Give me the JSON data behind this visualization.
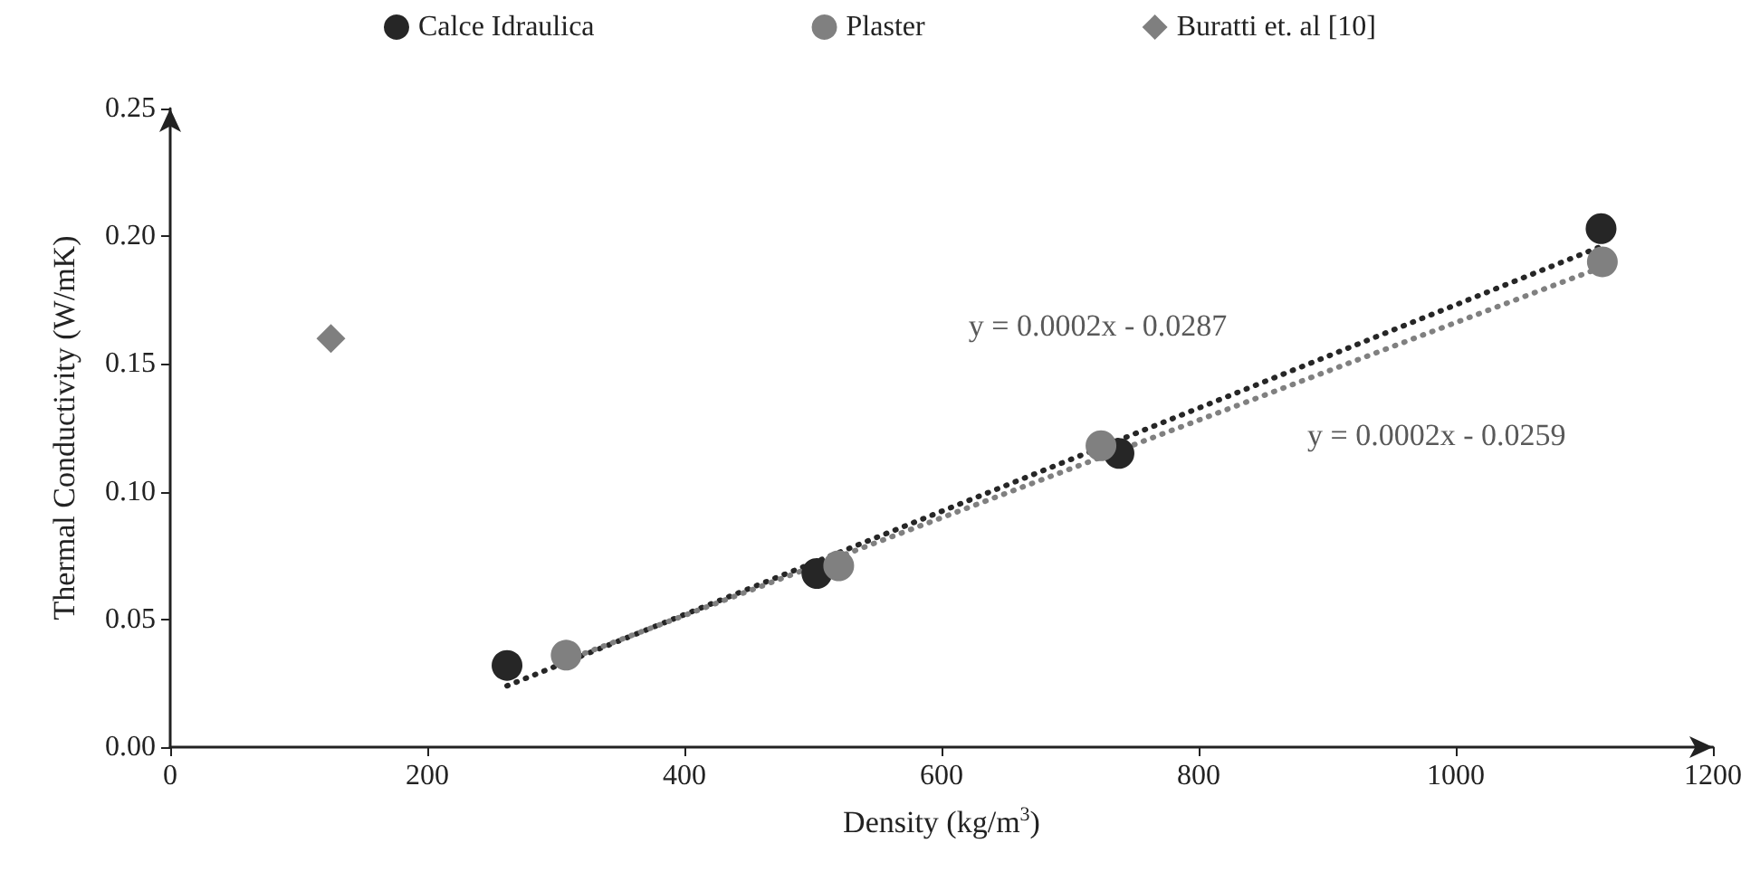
{
  "chart_data": {
    "type": "scatter",
    "xlabel": "Density (kg/m$^{3}$)",
    "ylabel": "Thermal Conductivity (W/mK)",
    "xlim": [
      0,
      1200
    ],
    "xticks": [
      0,
      200,
      400,
      600,
      800,
      1000,
      1200
    ],
    "ylim": [
      0,
      0.25
    ],
    "yticks": [
      {
        "value": 0,
        "label": "0.00"
      },
      {
        "value": 0.05,
        "label": "0.05"
      },
      {
        "value": 0.1,
        "label": "0.10"
      },
      {
        "value": 0.15,
        "label": "0.15"
      },
      {
        "value": 0.2,
        "label": "0.20"
      },
      {
        "value": 0.25,
        "label": "0.25"
      }
    ],
    "grid": false,
    "legend": "top",
    "series": [
      {
        "name": "Calce Idraulica",
        "color": "#262626",
        "marker": "circle",
        "x": [
          262,
          503,
          738,
          1113
        ],
        "values": [
          0.032,
          0.068,
          0.115,
          0.203
        ]
      },
      {
        "name": "Plaster",
        "color": "#808080",
        "marker": "circle",
        "x": [
          308,
          520,
          724,
          1114
        ],
        "values": [
          0.036,
          0.071,
          0.118,
          0.19
        ]
      },
      {
        "name": "Buratti et. al [10]",
        "color": "#7f7f7f",
        "marker": "diamond",
        "x": [
          125
        ],
        "values": [
          0.16
        ]
      },
      {
        "type": "line",
        "color": "#262626",
        "line_style": "dotted",
        "x": [
          262,
          1113
        ],
        "values": [
          0.024,
          0.196
        ]
      },
      {
        "type": "line",
        "color": "#808080",
        "line_style": "dotted",
        "x": [
          308,
          1114
        ],
        "values": [
          0.034,
          0.188
        ]
      }
    ],
    "annotations": [
      "y = 0.0002x - 0.0287",
      "y = 0.0002x - 0.0259"
    ]
  }
}
